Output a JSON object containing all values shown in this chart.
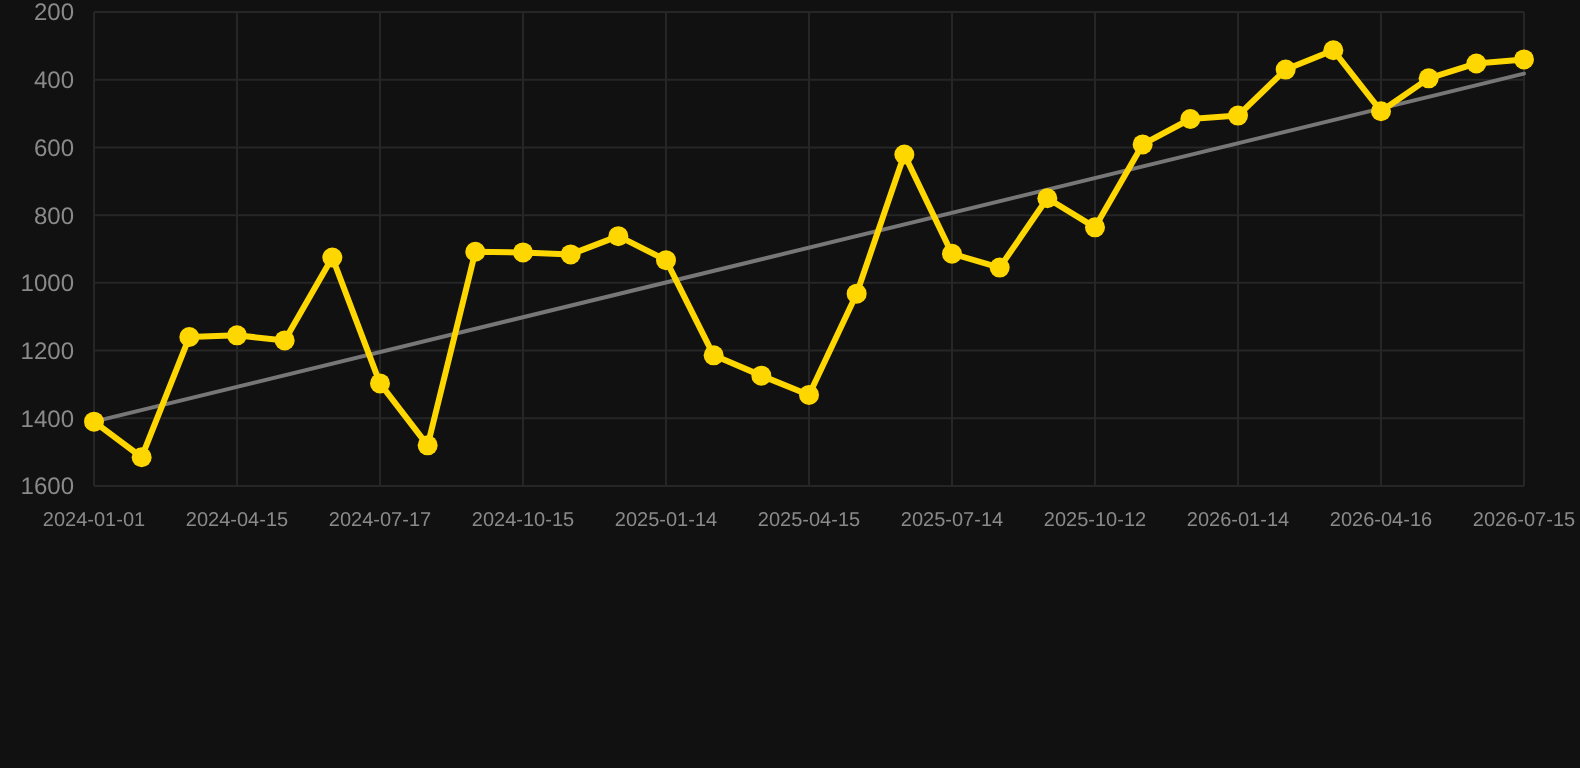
{
  "chart_data": {
    "type": "line",
    "categories": [
      "2024-01-01",
      null,
      null,
      "2024-04-15",
      null,
      null,
      "2024-07-17",
      null,
      null,
      "2024-10-15",
      null,
      null,
      "2025-01-14",
      null,
      null,
      "2025-04-15",
      null,
      null,
      "2025-07-14",
      null,
      null,
      "2025-10-12",
      null,
      null,
      "2026-01-14",
      null,
      null,
      "2026-04-16",
      null,
      null,
      "2026-07-15"
    ],
    "series": [
      {
        "color": "#ffd700",
        "marker": "circle",
        "values": [
          1410,
          1515,
          1160,
          1155,
          1170,
          925,
          1297,
          1480,
          908,
          910,
          916,
          862,
          933,
          1214,
          1274,
          1331,
          1032,
          621,
          914,
          955,
          750,
          836,
          591,
          516,
          506,
          370,
          313,
          493,
          396,
          352,
          340
        ]
      },
      {
        "type": "line",
        "color": "#777777",
        "marker": "none",
        "values": [
          1410,
          null,
          null,
          null,
          null,
          null,
          null,
          null,
          null,
          null,
          null,
          null,
          null,
          null,
          null,
          null,
          null,
          null,
          null,
          null,
          null,
          null,
          null,
          null,
          null,
          null,
          null,
          null,
          null,
          null,
          382
        ]
      }
    ],
    "ylim": [
      1600,
      200
    ],
    "yticks": [
      200,
      400,
      600,
      800,
      1000,
      1200,
      1400,
      1600
    ],
    "grid": true
  }
}
